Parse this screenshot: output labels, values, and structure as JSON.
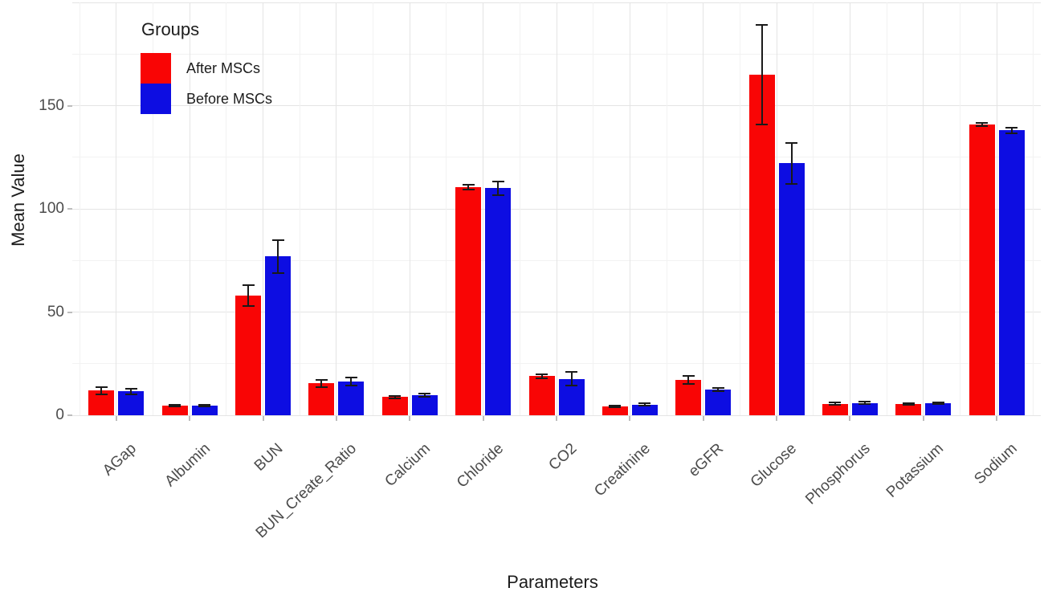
{
  "chart_data": {
    "type": "bar",
    "title": "",
    "xlabel": "Parameters",
    "ylabel": "Mean Value",
    "legend_title": "Groups",
    "legend_position": "top-left-inside",
    "grid": true,
    "error_bars": true,
    "ylim": [
      0,
      200
    ],
    "y_ticks": [
      0,
      50,
      100,
      150
    ],
    "categories": [
      "AGap",
      "Albumin",
      "BUN",
      "BUN_Create_Ratio",
      "Calcium",
      "Chloride",
      "CO2",
      "Creatinine",
      "eGFR",
      "Glucose",
      "Phosphorus",
      "Potassium",
      "Sodium"
    ],
    "series": [
      {
        "name": "After MSCs",
        "color": "#f90505",
        "values": [
          12,
          4.6,
          58,
          15.5,
          8.8,
          110.5,
          19,
          4.4,
          17,
          165,
          5.6,
          5.4,
          141
        ],
        "errors": [
          1.8,
          0.4,
          5,
          1.8,
          0.5,
          1,
          1,
          0.4,
          2,
          24,
          0.5,
          0.5,
          0.8
        ]
      },
      {
        "name": "Before MSCs",
        "color": "#0d0de2",
        "values": [
          11.5,
          4.5,
          77,
          16.3,
          9.8,
          110,
          17.7,
          5.2,
          12.5,
          122,
          6,
          5.8,
          138
        ],
        "errors": [
          1.2,
          0.4,
          8,
          2,
          0.8,
          3.3,
          3.2,
          0.6,
          0.7,
          10,
          0.5,
          0.5,
          1.3
        ]
      }
    ]
  },
  "colors": {
    "background": "#ffffff",
    "grid_major": "#e4e4e4",
    "grid_minor": "#f2f2f2",
    "axis_tick": "#bdbdbd",
    "tick_label_text": "#4b4b4b",
    "title_text": "#1c1c1c",
    "error_bar": "#1a1a1a"
  }
}
